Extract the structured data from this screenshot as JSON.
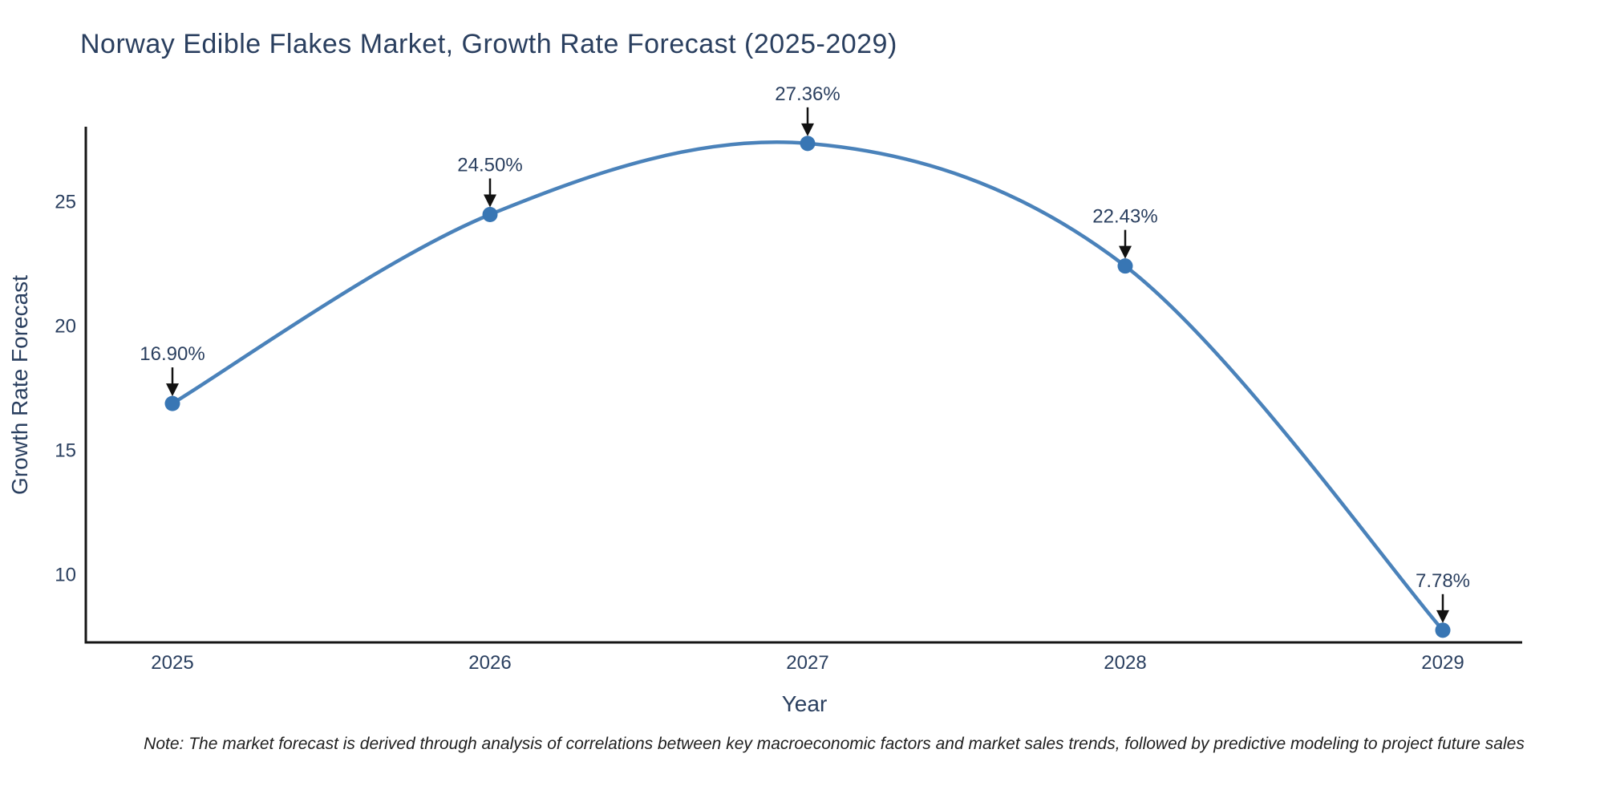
{
  "title": "Norway Edible Flakes Market, Growth Rate Forecast (2025-2029)",
  "note": "Note: The market forecast is derived through analysis of correlations between key macroeconomic factors and market sales trends, followed by predictive modeling to project future sales",
  "colors": {
    "line": "#4a82ba",
    "marker": "#3876b4",
    "axis": "#161616",
    "text": "#2a3f5f",
    "arrow": "#111111",
    "note_text": "#202020",
    "background": "#ffffff"
  },
  "chart_data": {
    "type": "line",
    "title": "Norway Edible Flakes Market, Growth Rate Forecast (2025-2029)",
    "xlabel": "Year",
    "ylabel": "Growth Rate Forecast",
    "categories": [
      "2025",
      "2026",
      "2027",
      "2028",
      "2029"
    ],
    "values": [
      16.9,
      24.5,
      27.36,
      22.43,
      7.78
    ],
    "point_labels": [
      "16.90%",
      "24.50%",
      "27.36%",
      "22.43%",
      "7.78%"
    ],
    "series": [
      {
        "name": "Growth Rate Forecast",
        "values": [
          16.9,
          24.5,
          27.36,
          22.43,
          7.78
        ]
      }
    ],
    "y_ticks": [
      10,
      15,
      20,
      25
    ],
    "ylim": [
      7.3,
      28.0
    ],
    "line_shape": "spline",
    "markers": true,
    "annotations_with_arrows": true,
    "grid": false,
    "legend_position": "none"
  }
}
